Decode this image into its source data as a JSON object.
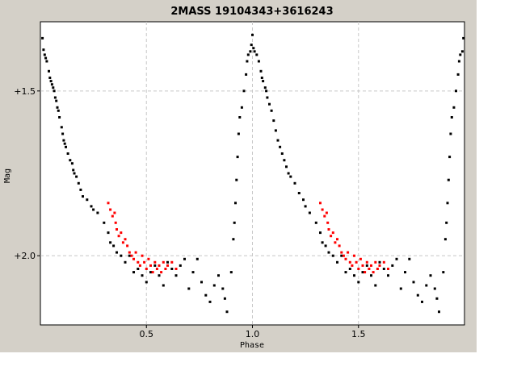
{
  "chart_data": {
    "type": "scatter",
    "title": "2MASS 19104343+3616243",
    "xlabel": "Phase",
    "ylabel": "Mag",
    "xlim": [
      0,
      2
    ],
    "ylim": [
      2.21,
      1.29
    ],
    "y_inverted": true,
    "xticks": [
      {
        "v": 0.5,
        "label": "0.5"
      },
      {
        "v": 1.0,
        "label": "1.0"
      },
      {
        "v": 1.5,
        "label": "1.5"
      }
    ],
    "yticks": [
      {
        "v": 1.5,
        "label": "+1.5"
      },
      {
        "v": 2.0,
        "label": "+2.0"
      }
    ],
    "grid": true,
    "colors": {
      "background": "#d4d0c8",
      "plot": "#ffffff",
      "black_series": "#000000",
      "red_series": "#ff0000",
      "grid": "#c8c8c8"
    },
    "series": [
      {
        "color": "#000000",
        "points": [
          [
            0.01,
            1.34
          ],
          [
            0.015,
            1.375
          ],
          [
            0.02,
            1.39
          ],
          [
            0.025,
            1.4
          ],
          [
            0.03,
            1.41
          ],
          [
            0.04,
            1.44
          ],
          [
            0.045,
            1.46
          ],
          [
            0.05,
            1.47
          ],
          [
            0.055,
            1.48
          ],
          [
            0.06,
            1.49
          ],
          [
            0.065,
            1.5
          ],
          [
            0.07,
            1.52
          ],
          [
            0.075,
            1.53
          ],
          [
            0.08,
            1.55
          ],
          [
            0.085,
            1.56
          ],
          [
            0.09,
            1.58
          ],
          [
            0.1,
            1.61
          ],
          [
            0.105,
            1.63
          ],
          [
            0.11,
            1.65
          ],
          [
            0.115,
            1.66
          ],
          [
            0.12,
            1.67
          ],
          [
            0.13,
            1.69
          ],
          [
            0.14,
            1.71
          ],
          [
            0.15,
            1.72
          ],
          [
            0.155,
            1.74
          ],
          [
            0.16,
            1.75
          ],
          [
            0.17,
            1.76
          ],
          [
            0.18,
            1.78
          ],
          [
            0.19,
            1.8
          ],
          [
            0.2,
            1.82
          ],
          [
            0.22,
            1.83
          ],
          [
            0.24,
            1.85
          ],
          [
            0.25,
            1.86
          ],
          [
            0.27,
            1.87
          ],
          [
            0.3,
            1.9
          ],
          [
            0.32,
            1.93
          ],
          [
            0.33,
            1.96
          ],
          [
            0.345,
            1.97
          ],
          [
            0.36,
            1.99
          ],
          [
            0.38,
            2.0
          ],
          [
            0.4,
            2.02
          ],
          [
            0.42,
            2.0
          ],
          [
            0.44,
            2.05
          ],
          [
            0.46,
            2.04
          ],
          [
            0.48,
            2.06
          ],
          [
            0.5,
            2.08
          ],
          [
            0.52,
            2.05
          ],
          [
            0.54,
            2.03
          ],
          [
            0.56,
            2.06
          ],
          [
            0.58,
            2.09
          ],
          [
            0.6,
            2.02
          ],
          [
            0.62,
            2.04
          ],
          [
            0.64,
            2.06
          ],
          [
            0.66,
            2.03
          ],
          [
            0.68,
            2.01
          ],
          [
            0.7,
            2.1
          ],
          [
            0.72,
            2.05
          ],
          [
            0.74,
            2.01
          ],
          [
            0.76,
            2.08
          ],
          [
            0.78,
            2.12
          ],
          [
            0.8,
            2.14
          ],
          [
            0.82,
            2.09
          ],
          [
            0.84,
            2.06
          ],
          [
            0.86,
            2.1
          ],
          [
            0.87,
            2.13
          ],
          [
            0.88,
            2.17
          ],
          [
            0.9,
            2.05
          ],
          [
            0.91,
            1.95
          ],
          [
            0.915,
            1.9
          ],
          [
            0.92,
            1.84
          ],
          [
            0.925,
            1.77
          ],
          [
            0.93,
            1.7
          ],
          [
            0.935,
            1.63
          ],
          [
            0.94,
            1.58
          ],
          [
            0.95,
            1.55
          ],
          [
            0.96,
            1.5
          ],
          [
            0.97,
            1.45
          ],
          [
            0.975,
            1.41
          ],
          [
            0.98,
            1.39
          ],
          [
            0.99,
            1.38
          ],
          [
            0.995,
            1.36
          ],
          [
            1.0,
            1.33
          ],
          [
            1.005,
            1.37
          ],
          [
            1.01,
            1.38
          ],
          [
            1.02,
            1.39
          ],
          [
            1.03,
            1.41
          ],
          [
            1.04,
            1.44
          ],
          [
            1.045,
            1.46
          ],
          [
            1.05,
            1.47
          ],
          [
            1.06,
            1.49
          ],
          [
            1.065,
            1.5
          ],
          [
            1.07,
            1.52
          ],
          [
            1.08,
            1.54
          ],
          [
            1.09,
            1.56
          ],
          [
            1.1,
            1.59
          ],
          [
            1.11,
            1.62
          ],
          [
            1.12,
            1.65
          ],
          [
            1.13,
            1.67
          ],
          [
            1.14,
            1.69
          ],
          [
            1.15,
            1.71
          ],
          [
            1.16,
            1.73
          ],
          [
            1.17,
            1.75
          ],
          [
            1.18,
            1.76
          ],
          [
            1.2,
            1.78
          ],
          [
            1.22,
            1.81
          ],
          [
            1.24,
            1.83
          ],
          [
            1.25,
            1.85
          ],
          [
            1.27,
            1.87
          ],
          [
            1.3,
            1.9
          ],
          [
            1.32,
            1.93
          ],
          [
            1.33,
            1.96
          ],
          [
            1.345,
            1.97
          ],
          [
            1.36,
            1.99
          ],
          [
            1.38,
            2.0
          ],
          [
            1.4,
            2.02
          ],
          [
            1.42,
            2.0
          ],
          [
            1.44,
            2.05
          ],
          [
            1.46,
            2.04
          ],
          [
            1.48,
            2.06
          ],
          [
            1.5,
            2.08
          ],
          [
            1.52,
            2.05
          ],
          [
            1.54,
            2.03
          ],
          [
            1.56,
            2.06
          ],
          [
            1.58,
            2.09
          ],
          [
            1.6,
            2.02
          ],
          [
            1.62,
            2.04
          ],
          [
            1.64,
            2.06
          ],
          [
            1.66,
            2.03
          ],
          [
            1.68,
            2.01
          ],
          [
            1.7,
            2.1
          ],
          [
            1.72,
            2.05
          ],
          [
            1.74,
            2.01
          ],
          [
            1.76,
            2.08
          ],
          [
            1.78,
            2.12
          ],
          [
            1.8,
            2.14
          ],
          [
            1.82,
            2.09
          ],
          [
            1.84,
            2.06
          ],
          [
            1.86,
            2.1
          ],
          [
            1.87,
            2.13
          ],
          [
            1.88,
            2.17
          ],
          [
            1.9,
            2.05
          ],
          [
            1.91,
            1.95
          ],
          [
            1.915,
            1.9
          ],
          [
            1.92,
            1.84
          ],
          [
            1.925,
            1.77
          ],
          [
            1.93,
            1.7
          ],
          [
            1.935,
            1.63
          ],
          [
            1.94,
            1.58
          ],
          [
            1.95,
            1.55
          ],
          [
            1.96,
            1.5
          ],
          [
            1.97,
            1.45
          ],
          [
            1.975,
            1.41
          ],
          [
            1.98,
            1.39
          ],
          [
            1.99,
            1.38
          ],
          [
            1.995,
            1.34
          ]
        ]
      },
      {
        "color": "#ff0000",
        "points": [
          [
            0.32,
            1.84
          ],
          [
            0.33,
            1.86
          ],
          [
            0.34,
            1.88
          ],
          [
            0.35,
            1.87
          ],
          [
            0.355,
            1.9
          ],
          [
            0.36,
            1.92
          ],
          [
            0.37,
            1.94
          ],
          [
            0.38,
            1.93
          ],
          [
            0.39,
            1.96
          ],
          [
            0.4,
            1.95
          ],
          [
            0.41,
            1.97
          ],
          [
            0.42,
            1.99
          ],
          [
            0.43,
            2.0
          ],
          [
            0.44,
            2.01
          ],
          [
            0.45,
            1.99
          ],
          [
            0.46,
            2.02
          ],
          [
            0.47,
            2.03
          ],
          [
            0.48,
            2.0
          ],
          [
            0.49,
            2.02
          ],
          [
            0.5,
            2.04
          ],
          [
            0.51,
            2.01
          ],
          [
            0.52,
            2.03
          ],
          [
            0.53,
            2.05
          ],
          [
            0.54,
            2.02
          ],
          [
            0.55,
            2.04
          ],
          [
            0.56,
            2.03
          ],
          [
            0.57,
            2.05
          ],
          [
            0.58,
            2.02
          ],
          [
            0.59,
            2.04
          ],
          [
            0.6,
            2.03
          ],
          [
            0.62,
            2.02
          ],
          [
            0.64,
            2.04
          ],
          [
            1.32,
            1.84
          ],
          [
            1.33,
            1.86
          ],
          [
            1.34,
            1.88
          ],
          [
            1.35,
            1.87
          ],
          [
            1.355,
            1.9
          ],
          [
            1.36,
            1.92
          ],
          [
            1.37,
            1.94
          ],
          [
            1.38,
            1.93
          ],
          [
            1.39,
            1.96
          ],
          [
            1.4,
            1.95
          ],
          [
            1.41,
            1.97
          ],
          [
            1.42,
            1.99
          ],
          [
            1.43,
            2.0
          ],
          [
            1.44,
            2.01
          ],
          [
            1.45,
            1.99
          ],
          [
            1.46,
            2.02
          ],
          [
            1.47,
            2.03
          ],
          [
            1.48,
            2.0
          ],
          [
            1.49,
            2.02
          ],
          [
            1.5,
            2.04
          ],
          [
            1.51,
            2.01
          ],
          [
            1.52,
            2.03
          ],
          [
            1.53,
            2.05
          ],
          [
            1.54,
            2.02
          ],
          [
            1.55,
            2.04
          ],
          [
            1.56,
            2.03
          ],
          [
            1.57,
            2.05
          ],
          [
            1.58,
            2.02
          ],
          [
            1.59,
            2.04
          ],
          [
            1.6,
            2.03
          ],
          [
            1.62,
            2.02
          ],
          [
            1.64,
            2.04
          ]
        ]
      }
    ]
  }
}
